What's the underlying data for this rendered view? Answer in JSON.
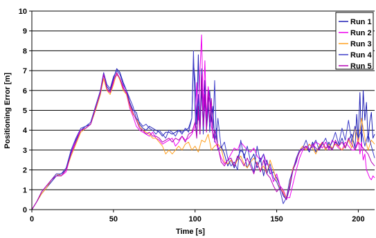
{
  "chart_data": {
    "type": "line",
    "title": "",
    "xlabel": "Time [s]",
    "ylabel": "Positioning Error [m]",
    "xlim": [
      0,
      210
    ],
    "ylim": [
      0,
      10
    ],
    "xticks": [
      0,
      50,
      100,
      150,
      200
    ],
    "yticks": [
      0,
      1,
      2,
      3,
      4,
      5,
      6,
      7,
      8,
      9,
      10
    ],
    "grid": "horizontal",
    "legend": "top-right",
    "series": [
      {
        "name": "Run 1",
        "color": "#1f1fb4",
        "x": [
          0,
          3,
          6,
          9,
          12,
          15,
          18,
          21,
          24,
          27,
          30,
          33,
          36,
          39,
          42,
          44,
          46,
          48,
          50,
          52,
          54,
          56,
          58,
          60,
          62,
          64,
          66,
          68,
          70,
          72,
          74,
          76,
          78,
          80,
          82,
          84,
          86,
          88,
          90,
          92,
          94,
          96,
          98,
          99,
          100,
          101,
          102,
          103,
          104,
          105,
          106,
          107,
          108,
          109,
          110,
          111,
          112,
          113,
          114,
          116,
          118,
          120,
          122,
          124,
          126,
          128,
          130,
          132,
          134,
          136,
          138,
          140,
          142,
          144,
          146,
          148,
          150,
          152,
          154,
          156,
          158,
          160,
          162,
          164,
          166,
          168,
          170,
          172,
          174,
          176,
          178,
          180,
          182,
          184,
          186,
          188,
          190,
          192,
          194,
          196,
          198,
          199,
          200,
          201,
          202,
          203,
          204,
          205,
          206,
          207,
          208,
          209,
          210
        ],
        "values": [
          0,
          0.4,
          0.8,
          1.1,
          1.4,
          1.7,
          1.8,
          2.0,
          2.9,
          3.5,
          4.0,
          4.2,
          4.3,
          5.0,
          5.8,
          6.8,
          6.2,
          6.0,
          6.6,
          7.1,
          6.9,
          6.4,
          6.0,
          5.4,
          5.0,
          4.9,
          4.3,
          4.1,
          4.0,
          4.2,
          4.1,
          4.0,
          3.9,
          3.7,
          3.9,
          3.9,
          3.8,
          3.9,
          4.0,
          3.9,
          4.0,
          4.1,
          4.6,
          7.4,
          6.5,
          4.3,
          7.8,
          3.8,
          6.1,
          4.2,
          6.5,
          4.0,
          5.0,
          6.0,
          4.4,
          5.2,
          3.4,
          4.1,
          3.0,
          3.2,
          2.8,
          2.2,
          2.5,
          2.1,
          2.6,
          3.0,
          2.8,
          2.1,
          2.5,
          2.8,
          2.1,
          2.6,
          1.7,
          2.5,
          1.8,
          1.9,
          1.6,
          1.2,
          0.7,
          0.5,
          1.1,
          2.0,
          2.4,
          3.0,
          3.0,
          3.2,
          2.9,
          3.4,
          2.9,
          3.1,
          3.4,
          3.0,
          3.4,
          3.0,
          3.4,
          3.2,
          3.6,
          3.1,
          3.5,
          3.8,
          3.1,
          4.8,
          3.6,
          5.9,
          3.2,
          6.0,
          4.5,
          5.4,
          3.4,
          4.4,
          4.9,
          3.6,
          3.8
        ]
      },
      {
        "name": "Run 2",
        "color": "#ee00ee",
        "x": [
          0,
          3,
          6,
          9,
          12,
          15,
          18,
          21,
          24,
          27,
          30,
          33,
          36,
          39,
          42,
          44,
          46,
          48,
          50,
          52,
          54,
          56,
          58,
          60,
          62,
          64,
          66,
          68,
          70,
          72,
          74,
          76,
          78,
          80,
          82,
          84,
          86,
          88,
          90,
          92,
          94,
          96,
          98,
          100,
          101,
          102,
          103,
          104,
          105,
          106,
          107,
          108,
          109,
          110,
          111,
          112,
          114,
          116,
          118,
          120,
          122,
          124,
          126,
          128,
          130,
          132,
          134,
          136,
          138,
          140,
          142,
          144,
          146,
          148,
          150,
          152,
          154,
          156,
          158,
          160,
          162,
          164,
          166,
          168,
          170,
          172,
          174,
          176,
          178,
          180,
          182,
          184,
          186,
          188,
          190,
          192,
          194,
          196,
          198,
          200,
          201,
          202,
          203,
          204,
          205,
          206,
          207,
          208,
          209,
          210
        ],
        "values": [
          0,
          0.4,
          0.9,
          1.2,
          1.5,
          1.8,
          1.7,
          1.9,
          2.8,
          3.6,
          4.0,
          4.1,
          4.3,
          5.1,
          6.0,
          6.9,
          6.0,
          5.9,
          6.4,
          6.8,
          6.6,
          6.2,
          5.8,
          5.1,
          4.7,
          4.2,
          4.0,
          3.9,
          3.8,
          3.7,
          3.9,
          3.6,
          3.5,
          3.3,
          3.4,
          3.5,
          3.6,
          3.2,
          3.4,
          3.7,
          3.5,
          3.6,
          3.8,
          4.2,
          6.4,
          4.5,
          7.0,
          8.8,
          5.0,
          7.5,
          4.6,
          6.2,
          5.5,
          4.2,
          3.8,
          3.5,
          3.1,
          2.6,
          2.3,
          2.5,
          2.8,
          3.1,
          3.0,
          3.4,
          3.2,
          3.0,
          2.9,
          3.1,
          2.7,
          2.5,
          2.8,
          2.3,
          2.1,
          1.4,
          1.8,
          1.2,
          1.0,
          0.6,
          0.6,
          1.3,
          2.0,
          2.6,
          3.0,
          3.1,
          3.3,
          3.1,
          3.4,
          3.3,
          3.1,
          3.4,
          3.0,
          3.5,
          3.3,
          3.1,
          3.0,
          3.4,
          3.2,
          3.0,
          3.0,
          3.6,
          2.8,
          3.4,
          2.5,
          2.8,
          2.0,
          1.8,
          1.6,
          1.5,
          1.7,
          1.6
        ]
      },
      {
        "name": "Run 3",
        "color": "#ffa020",
        "x": [
          0,
          3,
          6,
          9,
          12,
          15,
          18,
          21,
          24,
          27,
          30,
          33,
          36,
          39,
          42,
          44,
          46,
          48,
          50,
          52,
          54,
          56,
          58,
          60,
          62,
          64,
          66,
          68,
          70,
          72,
          74,
          76,
          78,
          80,
          82,
          84,
          86,
          88,
          90,
          92,
          94,
          96,
          98,
          100,
          102,
          104,
          106,
          108,
          110,
          112,
          114,
          116,
          118,
          120,
          122,
          124,
          126,
          128,
          130,
          132,
          134,
          136,
          138,
          140,
          142,
          144,
          146,
          148,
          150,
          152,
          154,
          156,
          158,
          160,
          162,
          164,
          166,
          168,
          170,
          172,
          174,
          176,
          178,
          180,
          182,
          184,
          186,
          188,
          190,
          192,
          194,
          196,
          198,
          200,
          202,
          204,
          206,
          208,
          210
        ],
        "values": [
          0,
          0.4,
          0.8,
          1.1,
          1.5,
          1.8,
          1.7,
          2.0,
          2.7,
          3.3,
          3.9,
          4.1,
          4.3,
          5.0,
          5.8,
          6.6,
          6.0,
          5.8,
          6.3,
          6.9,
          6.5,
          6.0,
          5.8,
          5.2,
          4.8,
          4.6,
          4.2,
          4.0,
          3.9,
          3.8,
          3.6,
          3.6,
          3.4,
          3.2,
          2.8,
          3.0,
          2.8,
          3.0,
          3.2,
          3.0,
          3.3,
          3.4,
          3.0,
          3.2,
          2.9,
          3.5,
          3.4,
          3.8,
          3.0,
          3.2,
          3.3,
          3.1,
          2.4,
          2.3,
          2.5,
          2.2,
          2.5,
          2.7,
          2.3,
          2.1,
          2.4,
          2.6,
          2.3,
          2.0,
          2.2,
          1.8,
          2.5,
          2.0,
          1.4,
          1.1,
          0.9,
          0.6,
          1.4,
          2.1,
          2.5,
          3.0,
          3.2,
          3.0,
          3.3,
          3.1,
          2.8,
          3.2,
          3.4,
          3.0,
          3.3,
          3.1,
          3.3,
          3.2,
          3.0,
          3.2,
          3.5,
          3.1,
          4.2,
          3.3,
          4.6,
          3.6,
          3.0,
          3.5,
          3.3
        ]
      },
      {
        "name": "Run 4",
        "color": "#3c3cc8",
        "x": [
          0,
          3,
          6,
          9,
          12,
          15,
          18,
          21,
          24,
          27,
          30,
          33,
          36,
          39,
          42,
          44,
          46,
          48,
          50,
          52,
          54,
          56,
          58,
          60,
          62,
          64,
          66,
          68,
          70,
          72,
          74,
          76,
          78,
          80,
          82,
          84,
          86,
          88,
          90,
          92,
          94,
          96,
          98,
          99,
          100,
          101,
          102,
          103,
          104,
          105,
          106,
          107,
          108,
          109,
          110,
          111,
          112,
          113,
          114,
          116,
          118,
          120,
          122,
          124,
          126,
          128,
          130,
          132,
          134,
          136,
          138,
          140,
          142,
          144,
          146,
          148,
          150,
          152,
          154,
          156,
          158,
          160,
          162,
          164,
          166,
          168,
          170,
          172,
          174,
          176,
          178,
          180,
          182,
          184,
          186,
          188,
          190,
          192,
          194,
          196,
          198,
          200,
          202,
          204,
          206,
          208,
          210
        ],
        "values": [
          0,
          0.4,
          0.9,
          1.2,
          1.5,
          1.8,
          1.8,
          2.1,
          3.0,
          3.6,
          4.1,
          4.2,
          4.4,
          5.2,
          6.0,
          6.9,
          6.3,
          6.1,
          6.7,
          7.0,
          6.8,
          6.3,
          6.0,
          5.6,
          5.2,
          4.6,
          4.4,
          4.2,
          4.3,
          4.1,
          4.0,
          3.8,
          4.0,
          3.8,
          3.6,
          4.0,
          3.9,
          3.7,
          4.0,
          3.8,
          4.1,
          3.9,
          4.6,
          8.0,
          5.0,
          3.6,
          5.8,
          4.0,
          7.1,
          3.8,
          5.5,
          4.2,
          6.0,
          3.9,
          5.2,
          4.1,
          6.5,
          3.6,
          4.6,
          3.1,
          3.4,
          2.6,
          2.2,
          2.4,
          2.0,
          3.5,
          2.6,
          3.2,
          2.4,
          1.9,
          3.2,
          2.4,
          2.8,
          1.8,
          2.3,
          1.6,
          1.4,
          1.0,
          0.3,
          0.6,
          1.5,
          2.0,
          2.6,
          3.0,
          3.1,
          3.5,
          3.0,
          3.2,
          3.5,
          3.0,
          3.3,
          3.6,
          3.1,
          3.4,
          3.9,
          3.3,
          4.1,
          3.5,
          4.5,
          3.4,
          4.2,
          3.6,
          4.0,
          3.2,
          3.8,
          3.2,
          2.6
        ]
      },
      {
        "name": "Run 5",
        "color": "#b400b4",
        "x": [
          0,
          3,
          6,
          9,
          12,
          15,
          18,
          21,
          24,
          27,
          30,
          33,
          36,
          39,
          42,
          44,
          46,
          48,
          50,
          52,
          54,
          56,
          58,
          60,
          62,
          64,
          66,
          68,
          70,
          72,
          74,
          76,
          78,
          80,
          82,
          84,
          86,
          88,
          90,
          92,
          94,
          96,
          98,
          100,
          101,
          102,
          103,
          104,
          105,
          106,
          107,
          108,
          109,
          110,
          111,
          112,
          114,
          116,
          118,
          120,
          122,
          124,
          126,
          128,
          130,
          132,
          134,
          136,
          138,
          140,
          142,
          144,
          146,
          148,
          150,
          152,
          154,
          156,
          158,
          160,
          162,
          164,
          166,
          168,
          170,
          172,
          174,
          176,
          178,
          180,
          182,
          184,
          186,
          188,
          190,
          192,
          194,
          196,
          198,
          200,
          202,
          204,
          206,
          208,
          210
        ],
        "values": [
          0,
          0.4,
          0.9,
          1.2,
          1.5,
          1.7,
          1.7,
          2.0,
          2.8,
          3.4,
          4.0,
          4.1,
          4.3,
          5.1,
          5.9,
          6.8,
          6.1,
          5.9,
          6.5,
          6.9,
          6.6,
          6.1,
          5.9,
          5.3,
          4.9,
          4.5,
          4.1,
          4.0,
          3.8,
          3.9,
          3.7,
          3.7,
          3.6,
          3.4,
          3.5,
          3.6,
          3.4,
          3.6,
          3.5,
          3.7,
          3.4,
          3.8,
          3.9,
          4.4,
          3.6,
          5.2,
          3.8,
          6.8,
          4.2,
          5.8,
          3.9,
          6.0,
          4.4,
          5.6,
          3.6,
          4.0,
          3.2,
          2.4,
          2.2,
          2.5,
          2.6,
          2.2,
          2.7,
          2.5,
          2.2,
          2.6,
          2.2,
          1.8,
          2.4,
          1.9,
          2.5,
          1.8,
          1.6,
          1.2,
          0.9,
          1.1,
          0.8,
          0.5,
          1.2,
          2.0,
          2.5,
          2.9,
          3.1,
          3.2,
          3.0,
          3.3,
          3.1,
          3.0,
          3.4,
          3.1,
          3.2,
          3.0,
          3.5,
          3.2,
          3.4,
          3.1,
          3.6,
          3.3,
          3.0,
          3.4,
          3.2,
          3.0,
          2.8,
          2.4,
          2.2
        ]
      }
    ]
  }
}
